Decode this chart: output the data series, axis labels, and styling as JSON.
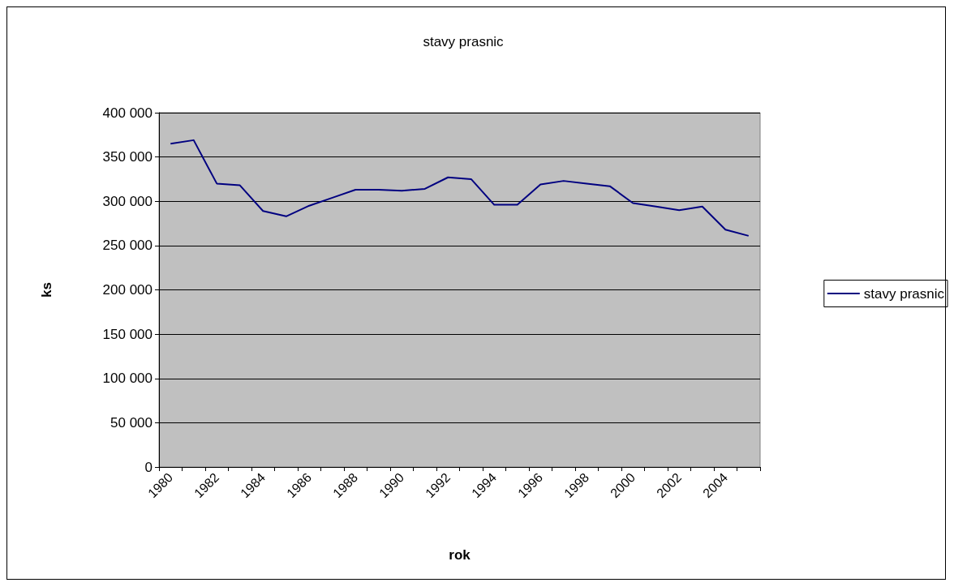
{
  "chart_data": {
    "type": "line",
    "title": "stavy prasnic",
    "xlabel": "rok",
    "ylabel": "ks",
    "categories": [
      "1980",
      null,
      "1982",
      null,
      "1984",
      null,
      "1986",
      null,
      "1988",
      null,
      "1990",
      null,
      "1992",
      null,
      "1994",
      null,
      "1996",
      null,
      "1998",
      null,
      "2000",
      null,
      "2002",
      null,
      "2004",
      null
    ],
    "series": [
      {
        "name": "stavy prasnic",
        "color": "#000080",
        "values": [
          365000,
          369000,
          320000,
          318000,
          289000,
          283000,
          295000,
          304000,
          313000,
          313000,
          312000,
          314000,
          327000,
          325000,
          296000,
          296000,
          319000,
          323000,
          320000,
          317000,
          298000,
          294000,
          290000,
          294000,
          268000,
          261000
        ]
      }
    ],
    "ylim": [
      0,
      400000
    ],
    "yticks": [
      {
        "value": 0,
        "label": "0"
      },
      {
        "value": 50000,
        "label": "50 000"
      },
      {
        "value": 100000,
        "label": "100 000"
      },
      {
        "value": 150000,
        "label": "150 000"
      },
      {
        "value": 200000,
        "label": "200 000"
      },
      {
        "value": 250000,
        "label": "250 000"
      },
      {
        "value": 300000,
        "label": "300 000"
      },
      {
        "value": 350000,
        "label": "350 000"
      },
      {
        "value": 400000,
        "label": "400 000"
      }
    ],
    "grid": "y",
    "legend": "right",
    "marker": "none",
    "line_style": "solid"
  }
}
